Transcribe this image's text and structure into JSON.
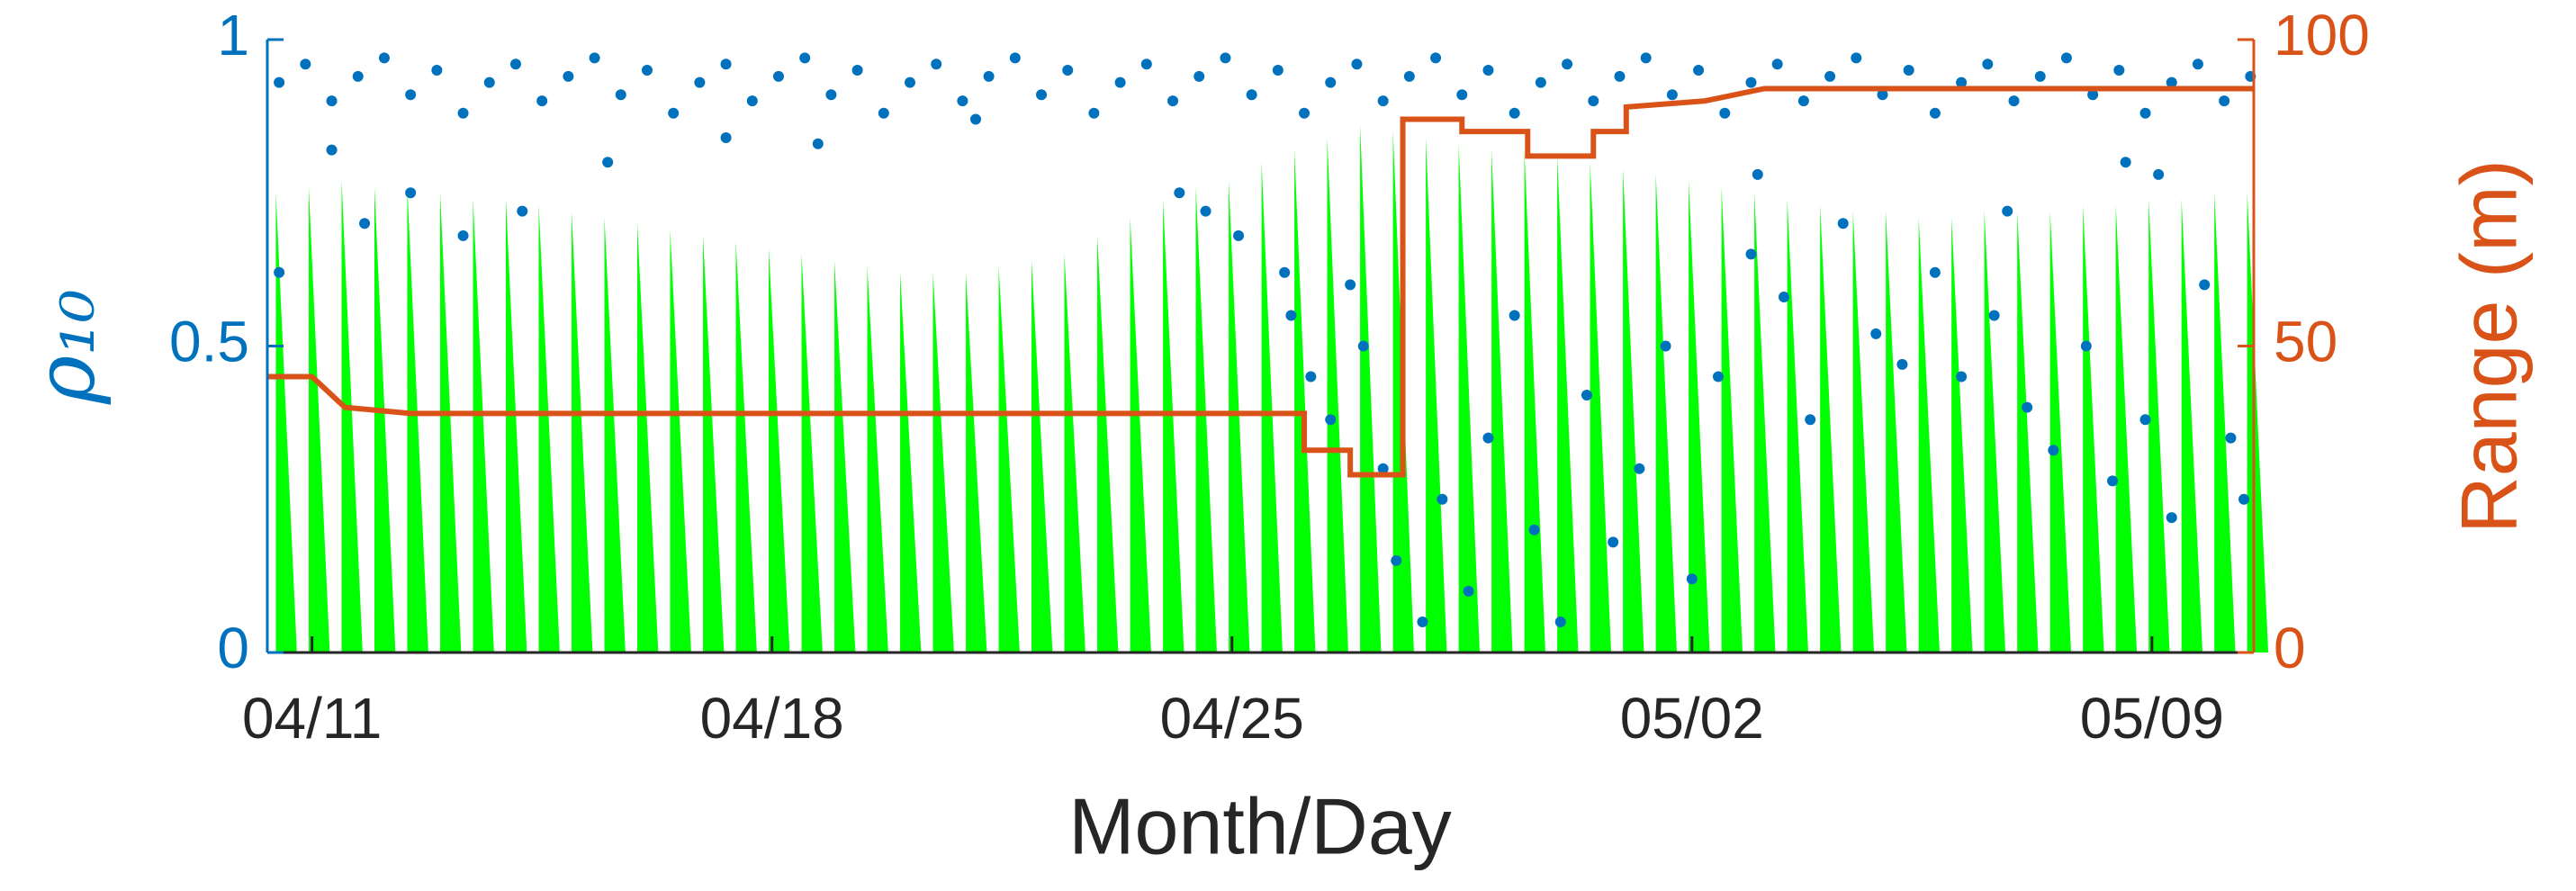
{
  "chart_data": {
    "type": "combo",
    "xlabel": "Month/Day",
    "ylabel": "ρ₁₀",
    "y2label": "Range (m)",
    "xlim": [
      -0.68,
      29.55
    ],
    "xticks": [
      {
        "value": 0,
        "label": "04/11"
      },
      {
        "value": 7,
        "label": "04/18"
      },
      {
        "value": 14,
        "label": "04/25"
      },
      {
        "value": 21,
        "label": "05/02"
      },
      {
        "value": 28,
        "label": "05/09"
      }
    ],
    "ylim": [
      0,
      1
    ],
    "yticks": [
      0,
      0.5,
      1
    ],
    "y2lim": [
      0,
      100
    ],
    "y2ticks": [
      0,
      50,
      100
    ],
    "series": [
      {
        "type": "spikes",
        "color": "#00ff00",
        "x": [
          -0.55,
          -0.05,
          0.45,
          0.95,
          1.45,
          1.95,
          2.45,
          2.95,
          3.45,
          3.95,
          4.45,
          4.95,
          5.45,
          5.95,
          6.45,
          6.95,
          7.45,
          7.95,
          8.45,
          8.95,
          9.45,
          9.95,
          10.45,
          10.95,
          11.45,
          11.95,
          12.45,
          12.95,
          13.45,
          13.95,
          14.45,
          14.95,
          15.45,
          15.95,
          16.45,
          16.95,
          17.45,
          17.95,
          18.45,
          18.95,
          19.45,
          19.95,
          20.45,
          20.95,
          21.45,
          21.95,
          22.45,
          22.95,
          23.45,
          23.95,
          24.45,
          24.95,
          25.45,
          25.95,
          26.45,
          26.95,
          27.45,
          27.95,
          28.45,
          28.95,
          29.45
        ],
        "values": [
          0.75,
          0.76,
          0.77,
          0.76,
          0.76,
          0.75,
          0.74,
          0.74,
          0.73,
          0.72,
          0.71,
          0.7,
          0.69,
          0.68,
          0.67,
          0.66,
          0.65,
          0.64,
          0.63,
          0.62,
          0.62,
          0.62,
          0.63,
          0.64,
          0.65,
          0.68,
          0.71,
          0.74,
          0.76,
          0.77,
          0.8,
          0.82,
          0.84,
          0.86,
          0.85,
          0.84,
          0.83,
          0.82,
          0.82,
          0.81,
          0.8,
          0.79,
          0.78,
          0.77,
          0.76,
          0.75,
          0.74,
          0.73,
          0.72,
          0.72,
          0.71,
          0.71,
          0.72,
          0.72,
          0.72,
          0.73,
          0.73,
          0.74,
          0.74,
          0.75,
          0.75
        ]
      },
      {
        "type": "scatter",
        "color": "#0072bd",
        "x": [
          -0.5,
          -0.1,
          0.3,
          0.7,
          1.1,
          1.5,
          1.9,
          2.3,
          2.7,
          3.1,
          3.5,
          3.9,
          4.3,
          4.7,
          5.1,
          5.5,
          5.9,
          6.3,
          6.7,
          7.1,
          7.5,
          7.9,
          8.3,
          8.7,
          9.1,
          9.5,
          9.9,
          10.3,
          10.7,
          11.1,
          11.5,
          11.9,
          12.3,
          12.7,
          13.1,
          13.5,
          13.9,
          14.3,
          14.7,
          15.1,
          15.5,
          15.9,
          16.3,
          16.7,
          17.1,
          17.5,
          17.9,
          18.3,
          18.7,
          19.1,
          19.5,
          19.9,
          20.3,
          20.7,
          21.1,
          21.5,
          21.9,
          22.3,
          22.7,
          23.1,
          23.5,
          23.9,
          24.3,
          24.7,
          25.1,
          25.5,
          25.9,
          26.3,
          26.7,
          27.1,
          27.5,
          27.9,
          28.3,
          28.7,
          29.1,
          29.5,
          -0.5,
          0.3,
          0.8,
          1.5,
          2.3,
          3.2,
          4.5,
          6.3,
          7.7,
          10.1,
          13.2,
          13.6,
          14.1,
          14.8,
          14.9,
          15.2,
          15.5,
          15.8,
          16.0,
          16.3,
          16.5,
          16.9,
          17.2,
          17.6,
          17.9,
          18.3,
          18.6,
          19.0,
          19.4,
          19.8,
          20.2,
          20.6,
          21.0,
          21.4,
          21.9,
          22.4,
          22.8,
          23.3,
          23.8,
          24.2,
          24.7,
          25.1,
          25.6,
          26.1,
          26.5,
          27.0,
          27.4,
          27.9,
          28.3,
          28.8,
          29.2,
          29.4,
          27.6,
          28.1,
          25.8,
          22.0
        ],
        "values": [
          0.93,
          0.96,
          0.9,
          0.94,
          0.97,
          0.91,
          0.95,
          0.88,
          0.93,
          0.96,
          0.9,
          0.94,
          0.97,
          0.91,
          0.95,
          0.88,
          0.93,
          0.96,
          0.9,
          0.94,
          0.97,
          0.91,
          0.95,
          0.88,
          0.93,
          0.96,
          0.9,
          0.94,
          0.97,
          0.91,
          0.95,
          0.88,
          0.93,
          0.96,
          0.9,
          0.94,
          0.97,
          0.91,
          0.95,
          0.88,
          0.93,
          0.96,
          0.9,
          0.94,
          0.97,
          0.91,
          0.95,
          0.88,
          0.93,
          0.96,
          0.9,
          0.94,
          0.97,
          0.91,
          0.95,
          0.88,
          0.93,
          0.96,
          0.9,
          0.94,
          0.97,
          0.91,
          0.95,
          0.88,
          0.93,
          0.96,
          0.9,
          0.94,
          0.97,
          0.91,
          0.95,
          0.88,
          0.93,
          0.96,
          0.9,
          0.94,
          0.62,
          0.82,
          0.7,
          0.75,
          0.68,
          0.72,
          0.8,
          0.84,
          0.83,
          0.87,
          0.75,
          0.72,
          0.68,
          0.62,
          0.55,
          0.45,
          0.38,
          0.6,
          0.5,
          0.3,
          0.15,
          0.05,
          0.25,
          0.1,
          0.35,
          0.55,
          0.2,
          0.05,
          0.42,
          0.18,
          0.3,
          0.5,
          0.12,
          0.45,
          0.65,
          0.58,
          0.38,
          0.7,
          0.52,
          0.47,
          0.62,
          0.45,
          0.55,
          0.4,
          0.33,
          0.5,
          0.28,
          0.38,
          0.22,
          0.6,
          0.35,
          0.25,
          0.8,
          0.78,
          0.72,
          0.78
        ]
      },
      {
        "type": "line",
        "color": "#d95319",
        "axis": "y2",
        "x": [
          -0.68,
          0,
          0.1,
          0.5,
          1.5,
          15.1,
          15.1,
          15.8,
          15.8,
          16.6,
          16.6,
          17.5,
          17.5,
          18.5,
          18.5,
          19.5,
          19.5,
          20.0,
          20.0,
          21.2,
          22.1,
          29.55
        ],
        "values": [
          45,
          45,
          44,
          40,
          39,
          39,
          33,
          33,
          29,
          29,
          87,
          87,
          85,
          85,
          81,
          81,
          85,
          85,
          89,
          90,
          92,
          92
        ]
      }
    ]
  }
}
